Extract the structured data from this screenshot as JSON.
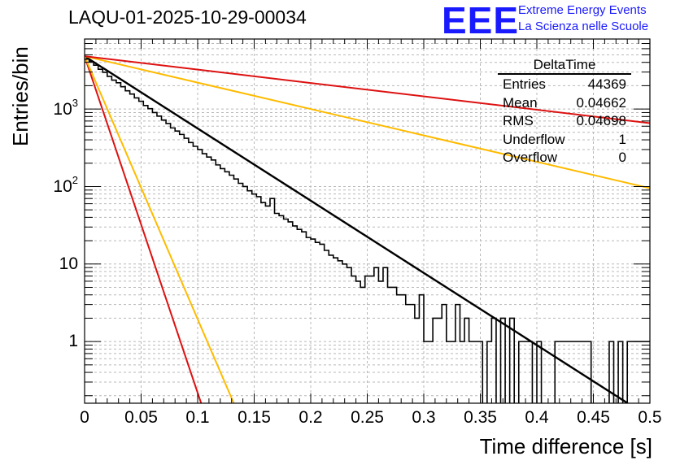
{
  "chart_data": {
    "type": "histogram",
    "title": "LAQU-01-2025-10-29-00034",
    "xlabel": "Time difference [s]",
    "ylabel": "Entries/bin",
    "yscale": "log",
    "xlim": [
      0,
      0.5
    ],
    "ylim": [
      0.16,
      8000
    ],
    "grid": true,
    "x_ticks": [
      {
        "v": 0,
        "label": "0"
      },
      {
        "v": 0.05,
        "label": "0.05"
      },
      {
        "v": 0.1,
        "label": "0.1"
      },
      {
        "v": 0.15,
        "label": "0.15"
      },
      {
        "v": 0.2,
        "label": "0.2"
      },
      {
        "v": 0.25,
        "label": "0.25"
      },
      {
        "v": 0.3,
        "label": "0.3"
      },
      {
        "v": 0.35,
        "label": "0.35"
      },
      {
        "v": 0.4,
        "label": "0.4"
      },
      {
        "v": 0.45,
        "label": "0.45"
      },
      {
        "v": 0.5,
        "label": "0.5"
      }
    ],
    "y_ticks": [
      {
        "v": 1,
        "base": "1",
        "exp": ""
      },
      {
        "v": 10,
        "base": "10",
        "exp": ""
      },
      {
        "v": 100,
        "base": "10",
        "exp": "2"
      },
      {
        "v": 1000,
        "base": "10",
        "exp": "3"
      }
    ],
    "bin_width": 0.004,
    "histogram_counts": [
      4400,
      4080,
      3680,
      3260,
      2980,
      2640,
      2360,
      2180,
      1940,
      1720,
      1560,
      1390,
      1260,
      1110,
      1010,
      900,
      810,
      720,
      650,
      570,
      520,
      470,
      420,
      370,
      330,
      300,
      265,
      240,
      220,
      190,
      170,
      155,
      140,
      125,
      110,
      100,
      88,
      80,
      74,
      62,
      56,
      70,
      45,
      42,
      38,
      35,
      31,
      28,
      26,
      22,
      21,
      19,
      18,
      15,
      13,
      12,
      11,
      10,
      9,
      7,
      6,
      5,
      7,
      7,
      9,
      6,
      9,
      5,
      5,
      4,
      4,
      3,
      3,
      2,
      4,
      1,
      1,
      2,
      2,
      3,
      1,
      1,
      3,
      1,
      2,
      1,
      1,
      1,
      0,
      1,
      2,
      0,
      2,
      0,
      2,
      0,
      1,
      1,
      1,
      0,
      1,
      0,
      0,
      0,
      1,
      1,
      1,
      1,
      1,
      1,
      1,
      1,
      0,
      0,
      0,
      0,
      1,
      0,
      1,
      0,
      1,
      1,
      1,
      1,
      1
    ],
    "series": [
      {
        "name": "exponential fit",
        "color": "#000000",
        "A": 4800,
        "tau": 0.0466
      },
      {
        "name": "red steep",
        "color": "#dd1111",
        "A": 4800,
        "tau": 0.01
      },
      {
        "name": "orange steep",
        "color": "#ffbb00",
        "A": 4800,
        "tau": 0.0128
      },
      {
        "name": "orange shallow",
        "color": "#ffbb00",
        "A": 4800,
        "tau": 0.1275
      },
      {
        "name": "red shallow",
        "color": "#dd1111",
        "A": 4800,
        "tau": 0.2515
      }
    ],
    "stats_box": {
      "name": "DeltaTime",
      "rows": [
        {
          "label": "Entries",
          "value": "44369"
        },
        {
          "label": "Mean",
          "value": "0.04662"
        },
        {
          "label": "RMS",
          "value": "0.04698"
        },
        {
          "label": "Underflow",
          "value": "1"
        },
        {
          "label": "Overflow",
          "value": "0"
        }
      ]
    }
  },
  "branding": {
    "logo": "EEE",
    "line1": "Extreme Energy Events",
    "line2": "La Scienza nelle Scuole"
  }
}
